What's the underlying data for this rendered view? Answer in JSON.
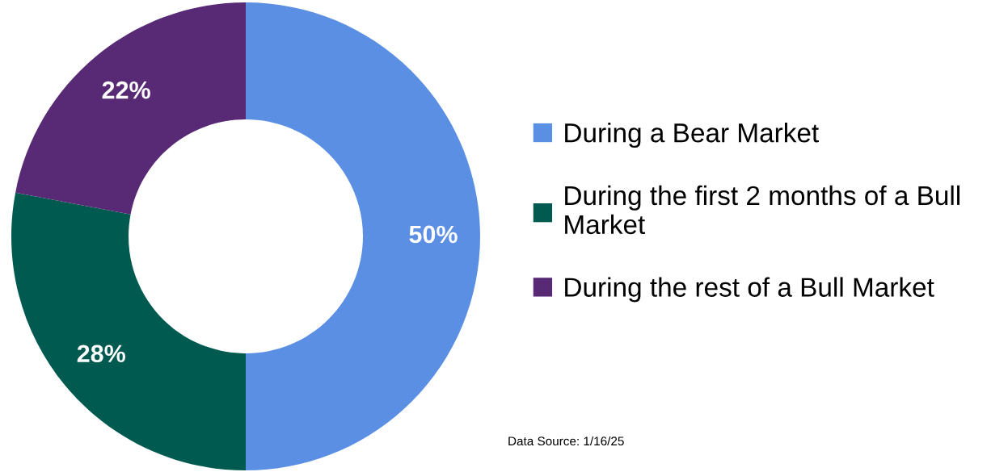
{
  "chart_data": {
    "type": "donut",
    "categories": [
      "During a Bear Market",
      "During the first 2 months of a Bull Market",
      "During the rest of a Bull Market"
    ],
    "values": [
      50,
      28,
      22
    ],
    "colors": [
      "#5b8fe3",
      "#005a50",
      "#582a75"
    ],
    "value_labels": [
      "50%",
      "28%",
      "22%"
    ],
    "legend": "right",
    "annotations": [
      "Data Source: 1/16/25"
    ]
  }
}
